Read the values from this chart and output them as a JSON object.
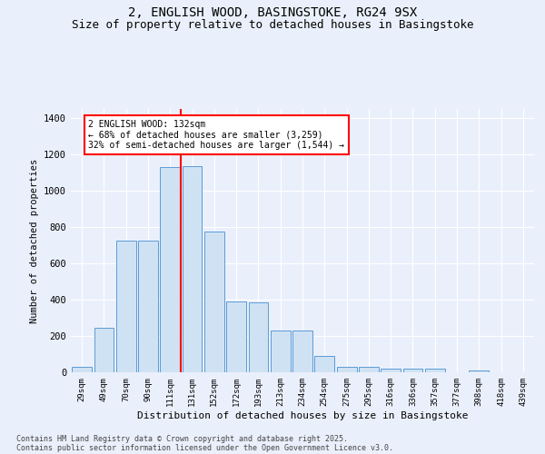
{
  "title_line1": "2, ENGLISH WOOD, BASINGSTOKE, RG24 9SX",
  "title_line2": "Size of property relative to detached houses in Basingstoke",
  "xlabel": "Distribution of detached houses by size in Basingstoke",
  "ylabel": "Number of detached properties",
  "footnote": "Contains HM Land Registry data © Crown copyright and database right 2025.\nContains public sector information licensed under the Open Government Licence v3.0.",
  "bar_labels": [
    "29sqm",
    "49sqm",
    "70sqm",
    "90sqm",
    "111sqm",
    "131sqm",
    "152sqm",
    "172sqm",
    "193sqm",
    "213sqm",
    "234sqm",
    "254sqm",
    "275sqm",
    "295sqm",
    "316sqm",
    "336sqm",
    "357sqm",
    "377sqm",
    "398sqm",
    "418sqm",
    "439sqm"
  ],
  "bar_values": [
    30,
    245,
    725,
    725,
    1130,
    1135,
    775,
    390,
    385,
    230,
    230,
    88,
    30,
    30,
    22,
    22,
    18,
    0,
    8,
    0,
    0
  ],
  "bar_color": "#cfe2f3",
  "bar_edge_color": "#5b9bd5",
  "annotation_text": "2 ENGLISH WOOD: 132sqm\n← 68% of detached houses are smaller (3,259)\n32% of semi-detached houses are larger (1,544) →",
  "annotation_box_color": "white",
  "annotation_box_edge_color": "red",
  "vline_index": 5,
  "ylim": [
    0,
    1450
  ],
  "yticks": [
    0,
    200,
    400,
    600,
    800,
    1000,
    1200,
    1400
  ],
  "background_color": "#eaf0fb",
  "grid_color": "white",
  "title_fontsize": 10,
  "subtitle_fontsize": 9
}
